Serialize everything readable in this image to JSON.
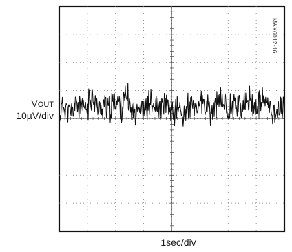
{
  "chart_data": {
    "type": "line",
    "title": "",
    "ylabel_main": "V",
    "ylabel_sub": "OUT",
    "ylabel_scale": "10µV/div",
    "xlabel": "1sec/div",
    "part_number": "MAX6012-16",
    "divisions": {
      "x": 8,
      "y": 8
    },
    "grid": true,
    "series": [
      {
        "x_div": [
          0,
          0.2,
          0.4,
          0.6,
          0.8,
          1,
          1.2,
          1.4,
          1.6,
          1.8,
          2,
          2.2,
          2.4,
          2.6,
          2.8,
          3,
          3.2,
          3.4,
          3.6,
          3.8,
          4,
          4.2,
          4.4,
          4.6,
          4.8,
          5,
          5.2,
          5.4,
          5.6,
          5.8,
          6,
          6.2,
          6.4,
          6.6,
          6.8,
          7,
          7.2,
          7.4,
          7.6,
          7.8,
          8
        ],
        "y_div": [
          0.2,
          0.5,
          0.1,
          0.6,
          0.3,
          0.4,
          0.9,
          0.2,
          0.6,
          0.3,
          0.7,
          0.4,
          0.8,
          0.2,
          0.5,
          0.3,
          0.6,
          0.4,
          0.3,
          0.5,
          0.2,
          0.4,
          0.1,
          0.5,
          0.3,
          0.6,
          0.4,
          0.2,
          0.5,
          0.7,
          0.3,
          0.6,
          0.5,
          0.4,
          0.7,
          0.3,
          0.6,
          0.5,
          0.2,
          0.4,
          0.3
        ]
      }
    ]
  }
}
